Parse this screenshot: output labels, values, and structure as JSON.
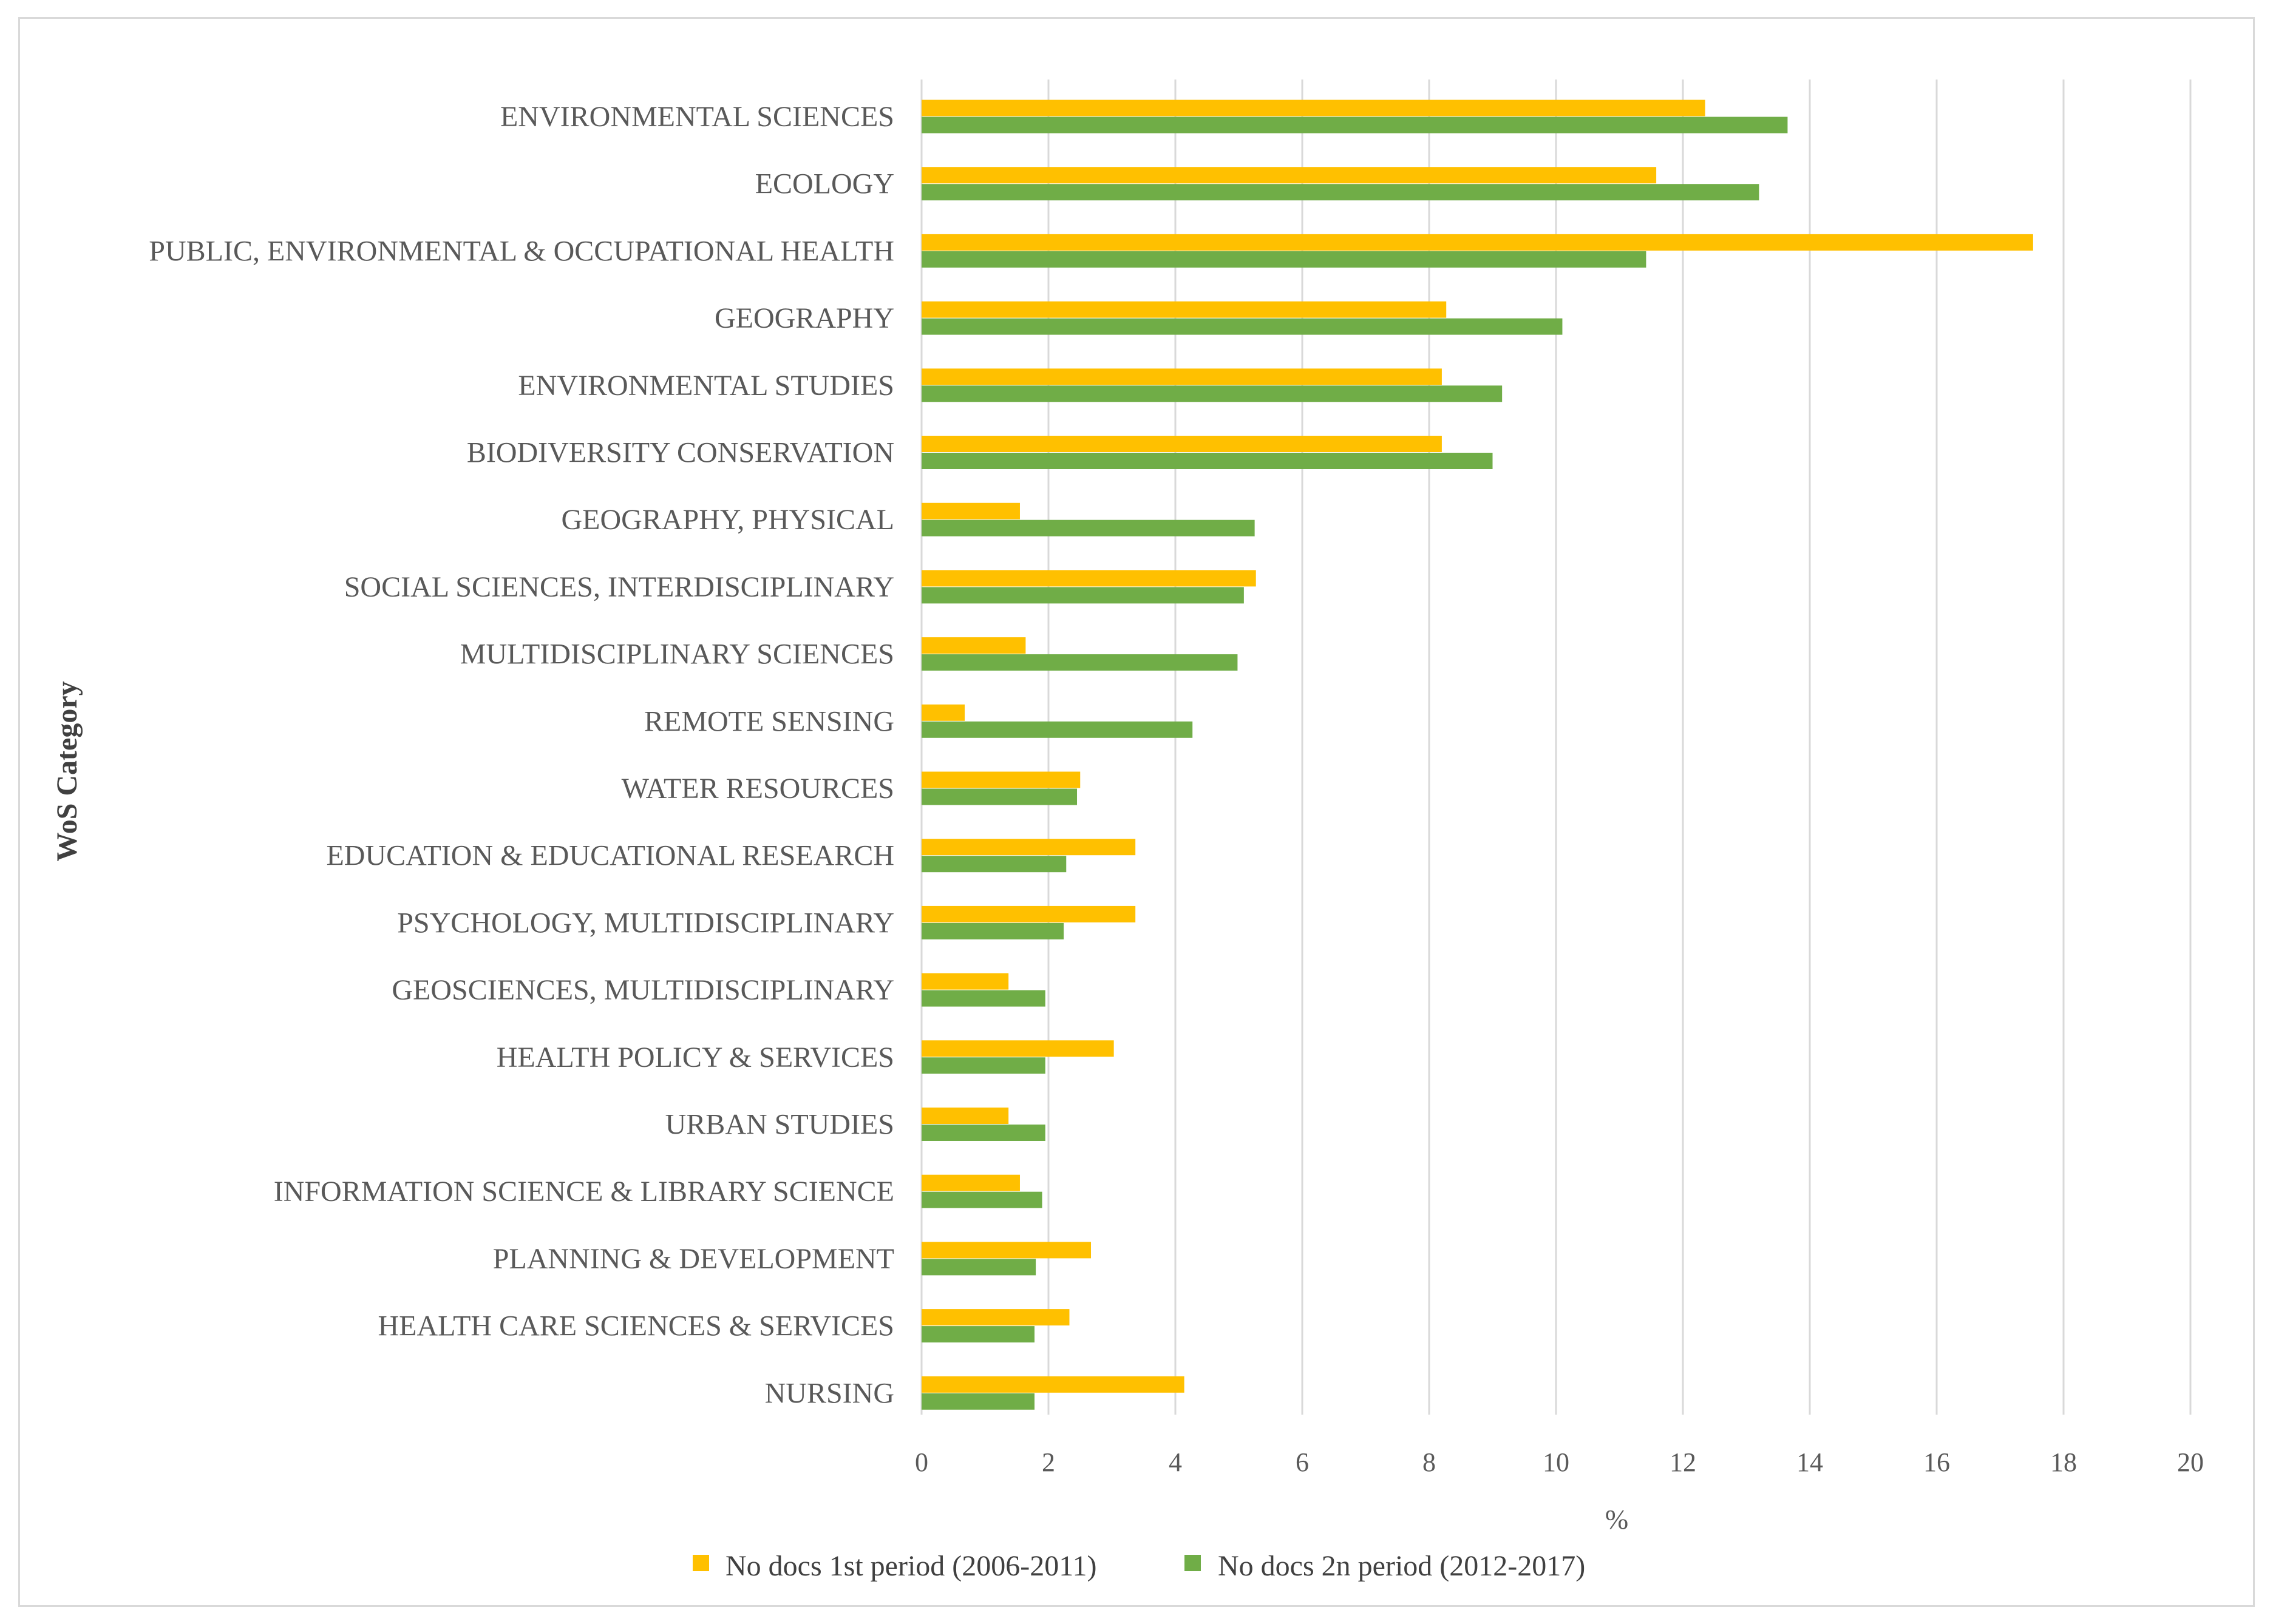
{
  "chart_data": {
    "type": "bar",
    "orientation": "horizontal",
    "title": "",
    "xlabel": "%",
    "ylabel": "WoS Category",
    "xlim": [
      0,
      20
    ],
    "xticks": [
      0,
      2,
      4,
      6,
      8,
      10,
      12,
      14,
      16,
      18,
      20
    ],
    "grid": true,
    "legend_position": "bottom",
    "categories": [
      "ENVIRONMENTAL SCIENCES",
      "ECOLOGY",
      "PUBLIC, ENVIRONMENTAL & OCCUPATIONAL HEALTH",
      "GEOGRAPHY",
      "ENVIRONMENTAL STUDIES",
      "BIODIVERSITY CONSERVATION",
      "GEOGRAPHY, PHYSICAL",
      "SOCIAL SCIENCES, INTERDISCIPLINARY",
      "MULTIDISCIPLINARY SCIENCES",
      "REMOTE SENSING",
      "WATER RESOURCES",
      "EDUCATION & EDUCATIONAL RESEARCH",
      "PSYCHOLOGY, MULTIDISCIPLINARY",
      "GEOSCIENCES, MULTIDISCIPLINARY",
      "HEALTH POLICY & SERVICES",
      "URBAN STUDIES",
      "INFORMATION SCIENCE & LIBRARY SCIENCE",
      "PLANNING & DEVELOPMENT",
      "HEALTH CARE SCIENCES & SERVICES",
      "NURSING"
    ],
    "series": [
      {
        "name": "No docs 1st period (2006-2011)",
        "color": "#ffc000",
        "values": [
          12.35,
          11.58,
          17.52,
          8.27,
          8.2,
          8.2,
          1.55,
          5.27,
          1.64,
          0.68,
          2.5,
          3.37,
          3.37,
          1.37,
          3.03,
          1.37,
          1.55,
          2.67,
          2.33,
          4.14
        ]
      },
      {
        "name": "No docs 2n period (2012-2017)",
        "color": "#70ad47",
        "values": [
          13.65,
          13.2,
          11.42,
          10.1,
          9.15,
          9.0,
          5.25,
          5.08,
          4.98,
          4.27,
          2.45,
          2.28,
          2.24,
          1.95,
          1.95,
          1.95,
          1.9,
          1.8,
          1.78,
          1.78
        ]
      }
    ]
  }
}
